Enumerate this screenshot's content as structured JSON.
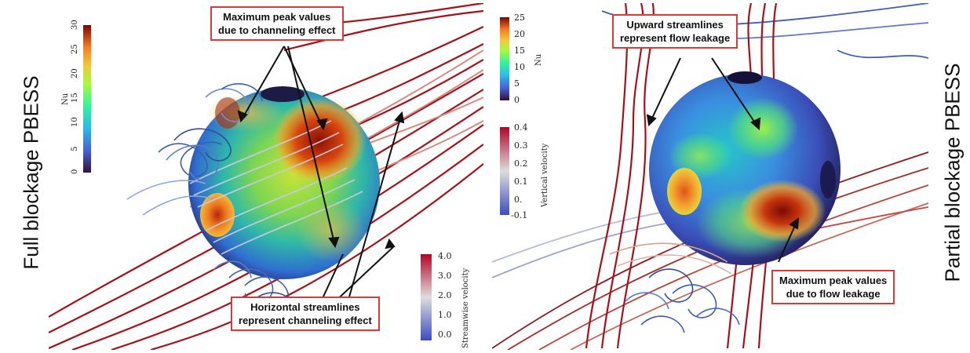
{
  "left_label": "Full blockage PBESS",
  "right_label": "Partial blockage PBESS",
  "left_panel": {
    "callout_top": "Maximum peak values\ndue to channeling effect",
    "callout_bottom": "Horizontal streamlines\nrepresent channeling effect",
    "nu_colorbar": {
      "title": "Nu",
      "ticks": [
        "30",
        "25",
        "20",
        "15",
        "10",
        "5",
        "0"
      ]
    },
    "velocity_colorbar": {
      "title": "Streamwise velocity",
      "ticks": [
        "4.0",
        "3.0",
        "2.0",
        "1.0",
        "0.0"
      ]
    }
  },
  "right_panel": {
    "callout_top": "Upward streamlines\nrepresent flow leakage",
    "callout_bottom": "Maximum peak values\ndue to flow leakage",
    "nu_colorbar": {
      "title": "Nu",
      "ticks": [
        "25",
        "20",
        "15",
        "10",
        "5",
        "0"
      ]
    },
    "velocity_colorbar": {
      "title": "Vertical velocity",
      "ticks": [
        "0.4",
        "0.3",
        "0.2",
        "0.1",
        "0.",
        "-0.1"
      ]
    }
  },
  "colors": {
    "callout_border": "#d33c3c",
    "streamline_high": "#a3121b",
    "streamline_low": "#3a5fb0"
  }
}
